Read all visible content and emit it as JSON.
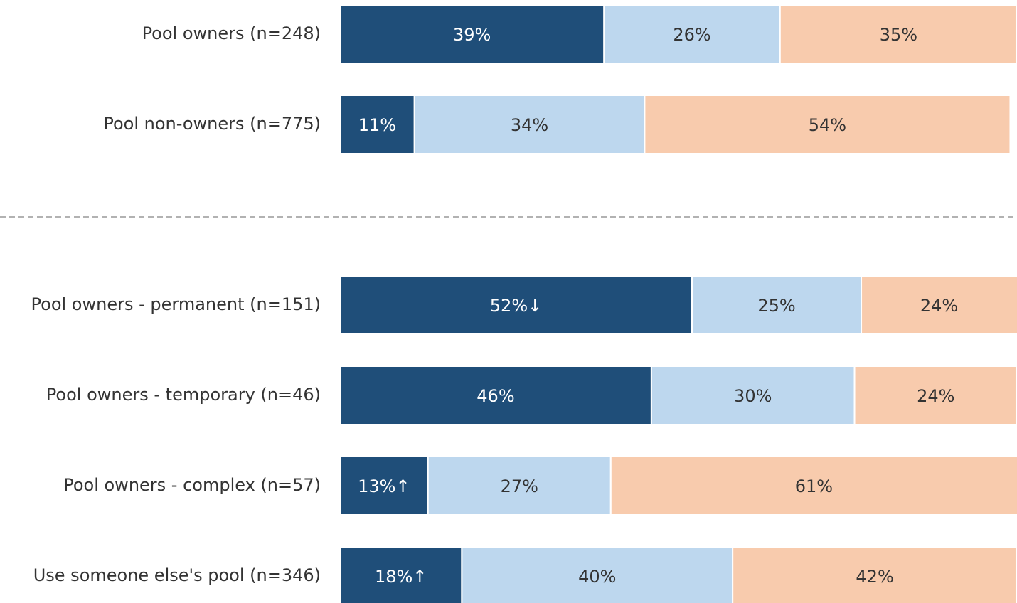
{
  "chart_data": {
    "type": "stacked-bar-horizontal",
    "categories": [
      "Pool owners (n=248)",
      "Pool non-owners (n=775)",
      null,
      "Pool owners - permanent (n=151)",
      "Pool owners - temporary (n=46)",
      "Pool owners - complex (n=57)",
      "Use someone else's pool (n=346)"
    ],
    "series": [
      {
        "color": "#1f4e79",
        "text_color": "#ffffff",
        "values": [
          39,
          11,
          null,
          52,
          46,
          13,
          18
        ],
        "value_labels": [
          "39%",
          "11%",
          null,
          "52%↓",
          "46%",
          "13%↑",
          "18%↑"
        ]
      },
      {
        "color": "#bdd7ee",
        "text_color": "#333333",
        "values": [
          26,
          34,
          null,
          25,
          30,
          27,
          40
        ],
        "value_labels": [
          "26%",
          "34%",
          null,
          "25%",
          "30%",
          "27%",
          "40%"
        ]
      },
      {
        "color": "#f8cbad",
        "text_color": "#333333",
        "values": [
          35,
          54,
          null,
          24,
          24,
          61,
          42
        ],
        "value_labels": [
          "35%",
          "54%",
          null,
          "24%",
          "24%",
          "61%",
          "42%"
        ]
      }
    ],
    "xlim": [
      0,
      100
    ]
  }
}
